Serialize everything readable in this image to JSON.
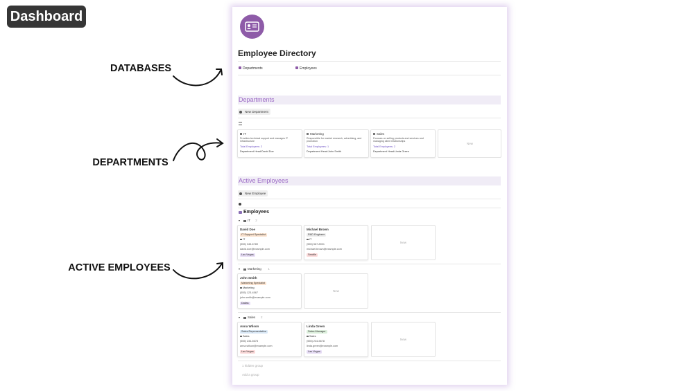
{
  "badge": "Dashboard",
  "annotations": [
    "DATABASES",
    "DEPARTMENTS",
    "ACTIVE EMPLOYEES"
  ],
  "page": {
    "title": "Employee Directory",
    "links": [
      "Departments",
      "Employees"
    ]
  },
  "departments": {
    "heading": "Departments",
    "button": "New Department",
    "new_card": "New",
    "head_label": "Department Head:",
    "cards": [
      {
        "name": "IT",
        "description": "Provides technical support and manages IT infrastructure",
        "total": "Total Employees: 2",
        "head": "David Doe"
      },
      {
        "name": "Marketing",
        "description": "Responsible for market research, advertising, and promotion",
        "total": "Total Employees: 1",
        "head": "John Smith"
      },
      {
        "name": "Sales",
        "description": "Focuses on selling products and services and managing client relationships",
        "total": "Total Employees: 2",
        "head": "Linda Green"
      }
    ]
  },
  "employees": {
    "heading": "Active Employees",
    "button": "New Employee",
    "view_title": "Employees",
    "new_card": "New",
    "groups": [
      {
        "name": "IT",
        "count": 2,
        "cards": [
          {
            "name": "David Doe",
            "role": "IT Support Specialist",
            "department": "IT",
            "phone": "(555) 345-6789",
            "email": "david.doe@example.com",
            "location": "Las Vegas"
          },
          {
            "name": "Michael Brown",
            "role": "R&D Engineer",
            "department": "IT",
            "phone": "(555) 567-8901",
            "email": "michael.brown@example.com",
            "location": "Seattle"
          }
        ]
      },
      {
        "name": "Marketing",
        "count": 1,
        "cards": [
          {
            "name": "John Smith",
            "role": "Marketing Specialist",
            "department": "Marketing",
            "phone": "(555) 123-4567",
            "email": "john.smith@example.com",
            "location": "Dallas"
          }
        ]
      },
      {
        "name": "Sales",
        "count": 2,
        "cards": [
          {
            "name": "Anna Wilson",
            "role": "Sales Representative",
            "department": "Sales",
            "phone": "(555) 234-5678",
            "email": "anna.wilson@example.com",
            "location": "Las Vegas"
          },
          {
            "name": "Linda Green",
            "role": "Sales Manager",
            "department": "Sales",
            "phone": "(555) 234-5678",
            "email": "linda.green@example.com",
            "location": "Las Vegas"
          }
        ]
      }
    ],
    "hidden": "1 hidden group",
    "add_group": "Add a group"
  }
}
